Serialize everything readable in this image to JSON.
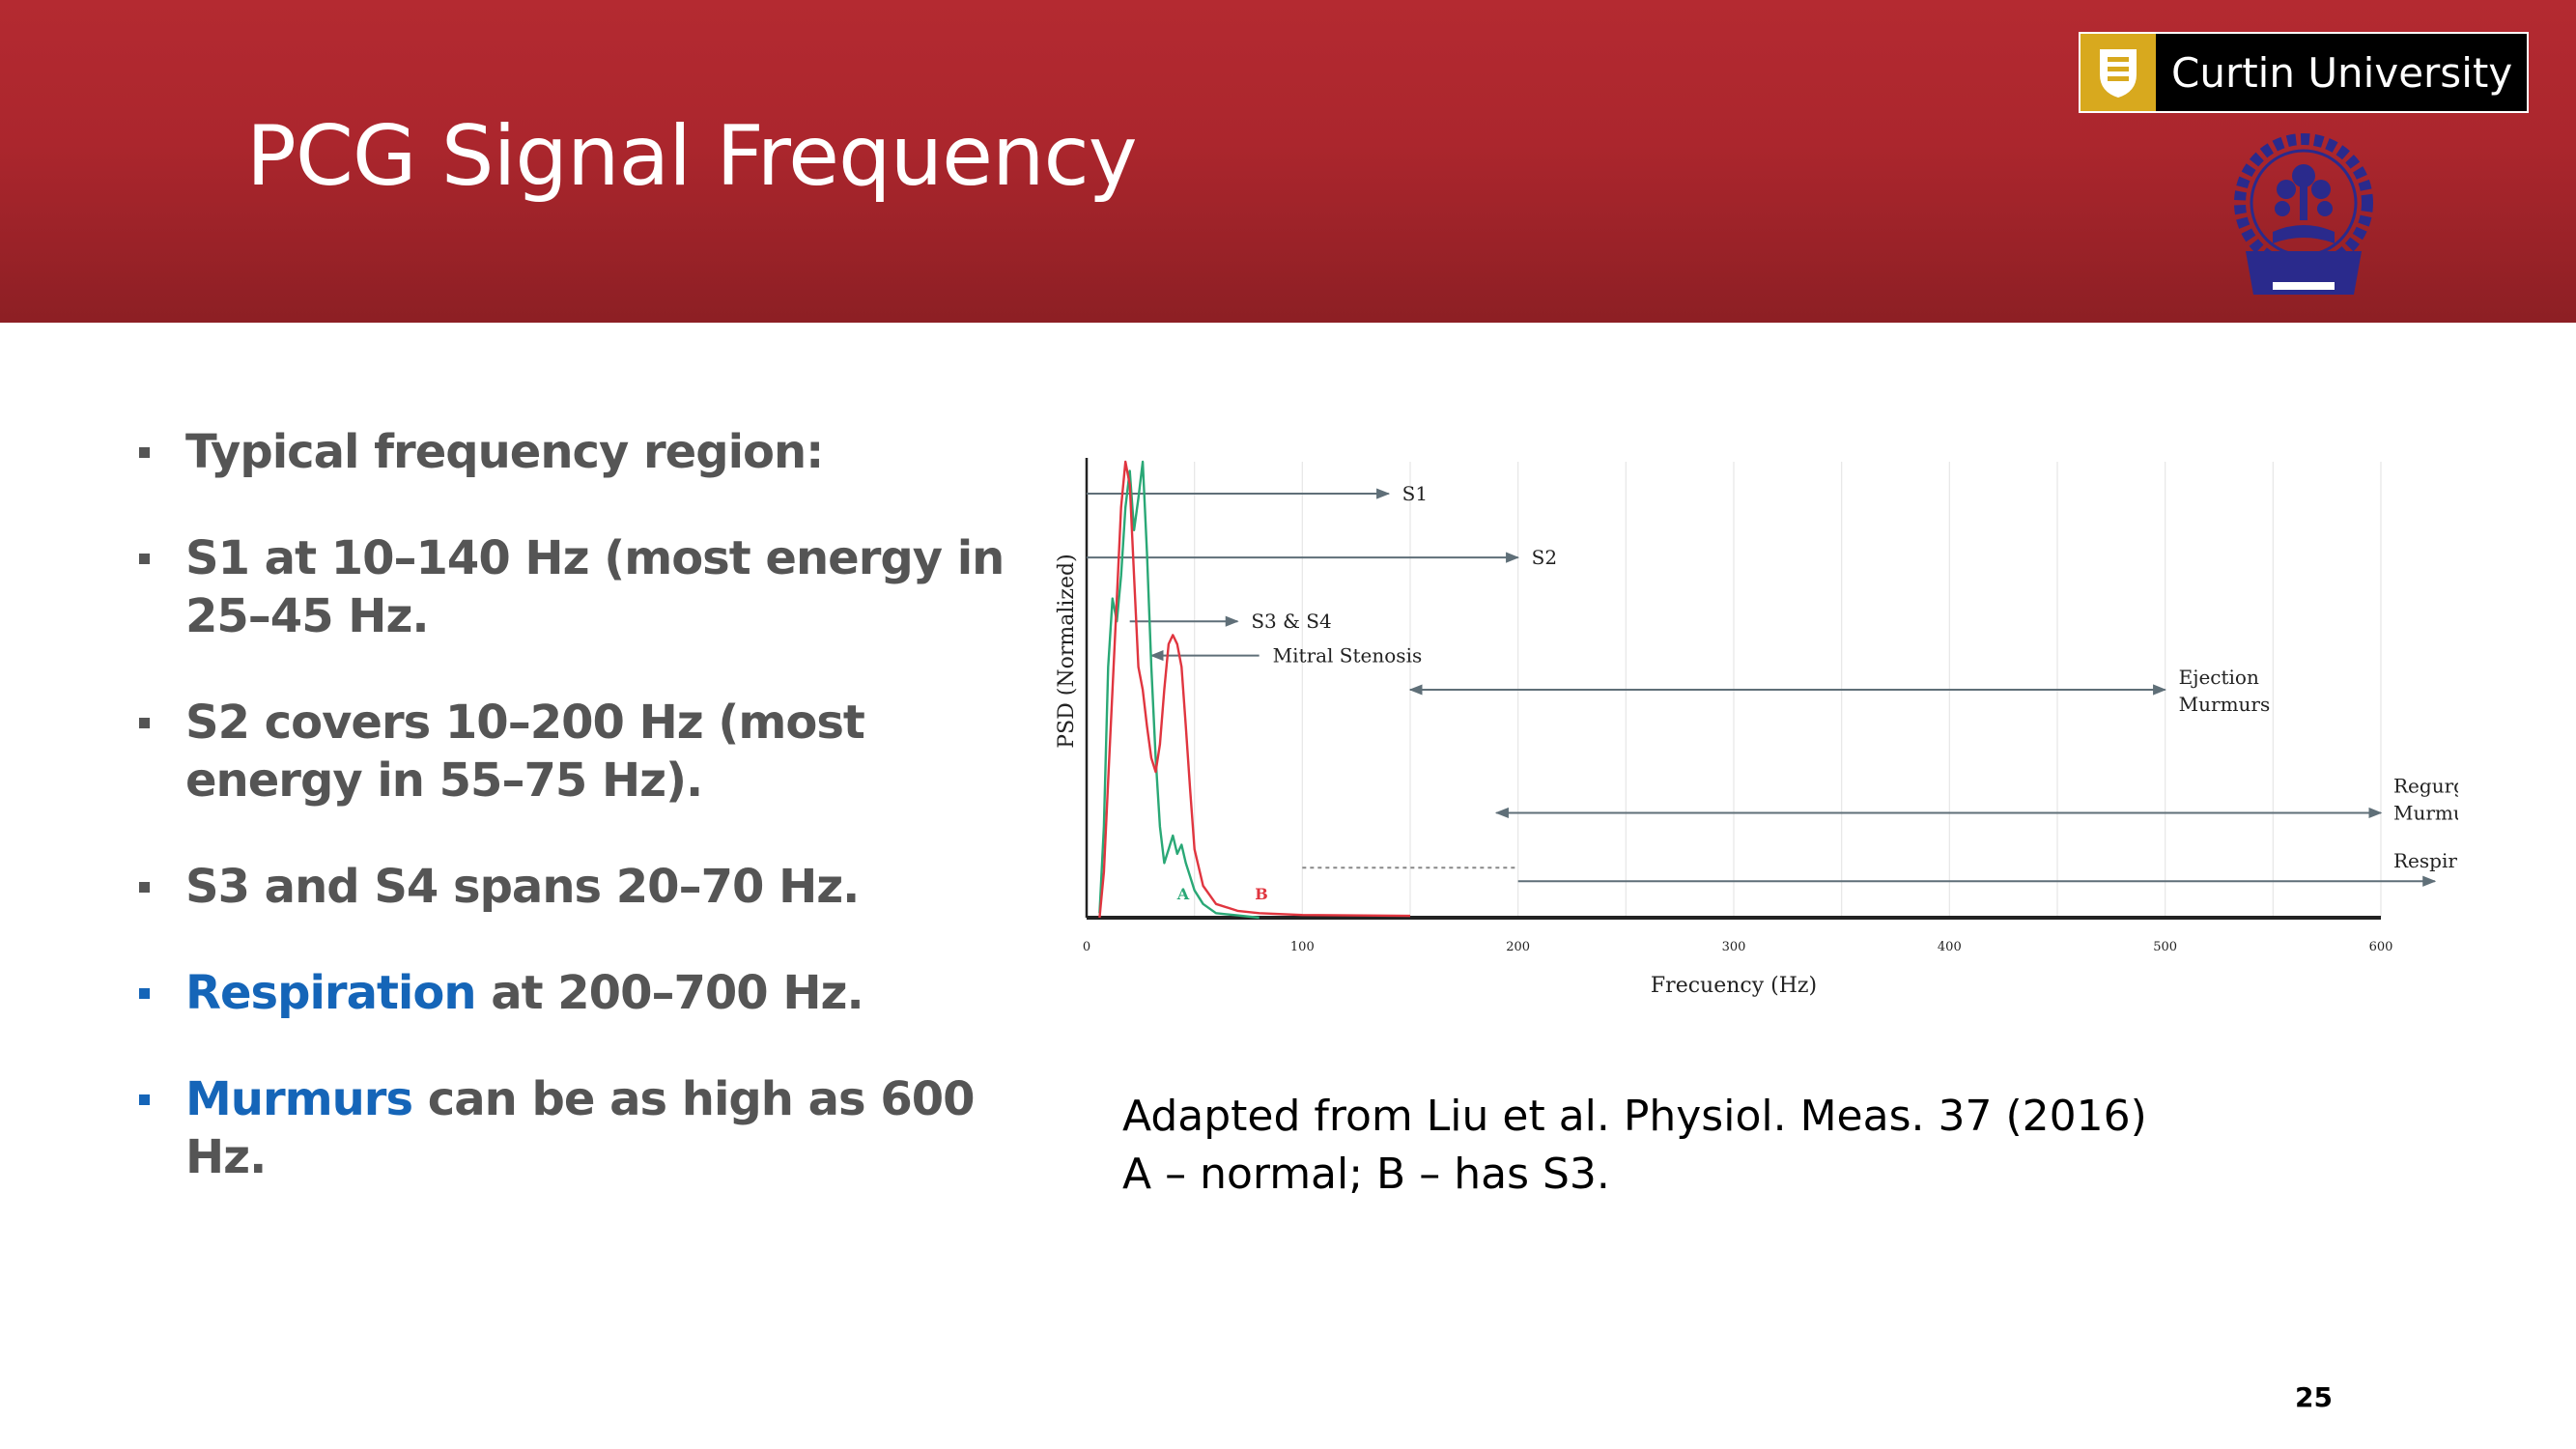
{
  "slide": {
    "title": "PCG Signal Frequency",
    "logo_text": "Curtin University",
    "page_number": "25"
  },
  "bullets": [
    {
      "highlight": "",
      "text": "Typical frequency region:"
    },
    {
      "highlight": "",
      "text": "S1 at 10–140 Hz (most energy in 25–45 Hz."
    },
    {
      "highlight": "",
      "text": "S2 covers 10–200 Hz (most energy in 55–75 Hz)."
    },
    {
      "highlight": "",
      "text": "S3 and S4 spans 20–70 Hz."
    },
    {
      "highlight": "Respiration",
      "text": " at 200–700 Hz."
    },
    {
      "highlight": "Murmurs",
      "text": " can be as high as 600 Hz."
    }
  ],
  "caption": {
    "line1": "Adapted from Liu et al. Physiol. Meas. 37 (2016)",
    "line2": "A – normal; B – has S3."
  },
  "colors": {
    "header_red": "#ab262d",
    "accent_blue": "#1565b8",
    "bullet_gray": "#555555",
    "curve_a": "#2aa876",
    "curve_b": "#e0353f",
    "arrow_gray": "#5f6f78"
  },
  "chart_data": {
    "type": "line",
    "title": "",
    "xlabel": "Frecuency (Hz)",
    "ylabel": "PSD (Normalized)",
    "xlim": [
      0,
      600
    ],
    "ylim": [
      0,
      1
    ],
    "x_ticks": [
      0,
      100,
      200,
      300,
      400,
      500,
      600
    ],
    "grid": true,
    "series": [
      {
        "name": "A",
        "color": "#2aa876",
        "points": [
          [
            6,
            0.01
          ],
          [
            8,
            0.2
          ],
          [
            10,
            0.55
          ],
          [
            12,
            0.7
          ],
          [
            14,
            0.65
          ],
          [
            16,
            0.75
          ],
          [
            18,
            0.9
          ],
          [
            20,
            0.98
          ],
          [
            22,
            0.85
          ],
          [
            24,
            0.92
          ],
          [
            26,
            1.0
          ],
          [
            28,
            0.8
          ],
          [
            30,
            0.55
          ],
          [
            32,
            0.35
          ],
          [
            34,
            0.2
          ],
          [
            36,
            0.12
          ],
          [
            38,
            0.15
          ],
          [
            40,
            0.18
          ],
          [
            42,
            0.14
          ],
          [
            44,
            0.16
          ],
          [
            46,
            0.12
          ],
          [
            48,
            0.09
          ],
          [
            50,
            0.06
          ],
          [
            54,
            0.03
          ],
          [
            60,
            0.01
          ],
          [
            70,
            0.005
          ],
          [
            80,
            0.0
          ]
        ],
        "label_at": [
          42,
          0.04
        ]
      },
      {
        "name": "B",
        "color": "#e0353f",
        "points": [
          [
            6,
            0.0
          ],
          [
            8,
            0.1
          ],
          [
            10,
            0.3
          ],
          [
            12,
            0.5
          ],
          [
            14,
            0.7
          ],
          [
            16,
            0.9
          ],
          [
            18,
            1.0
          ],
          [
            20,
            0.95
          ],
          [
            22,
            0.75
          ],
          [
            24,
            0.55
          ],
          [
            26,
            0.5
          ],
          [
            28,
            0.42
          ],
          [
            30,
            0.35
          ],
          [
            32,
            0.32
          ],
          [
            34,
            0.38
          ],
          [
            36,
            0.5
          ],
          [
            38,
            0.6
          ],
          [
            40,
            0.62
          ],
          [
            42,
            0.6
          ],
          [
            44,
            0.55
          ],
          [
            46,
            0.42
          ],
          [
            48,
            0.28
          ],
          [
            50,
            0.15
          ],
          [
            54,
            0.07
          ],
          [
            60,
            0.03
          ],
          [
            70,
            0.015
          ],
          [
            80,
            0.01
          ],
          [
            100,
            0.006
          ],
          [
            150,
            0.004
          ]
        ],
        "label_at": [
          78,
          0.04
        ]
      }
    ],
    "annotations": [
      {
        "label": "S1",
        "x1": 0,
        "x2": 140,
        "y": 0.93,
        "arrows": "end"
      },
      {
        "label": "S2",
        "x1": 0,
        "x2": 200,
        "y": 0.79,
        "arrows": "end"
      },
      {
        "label": "S3 & S4",
        "x1": 20,
        "x2": 70,
        "y": 0.65,
        "arrows": "end"
      },
      {
        "label": "Mitral Stenosis",
        "x1": 30,
        "x2": 80,
        "y": 0.575,
        "arrows": "start"
      },
      {
        "label": "Ejection Murmurs",
        "x1": 150,
        "x2": 500,
        "y": 0.5,
        "arrows": "both"
      },
      {
        "label": "Regurgitation Murmurs",
        "x1": 190,
        "x2": 600,
        "y": 0.23,
        "arrows": "both"
      },
      {
        "label": "Respiration",
        "x1": 200,
        "x2": 625,
        "y": 0.08,
        "arrows": "end",
        "dashed_from": 100
      }
    ]
  }
}
